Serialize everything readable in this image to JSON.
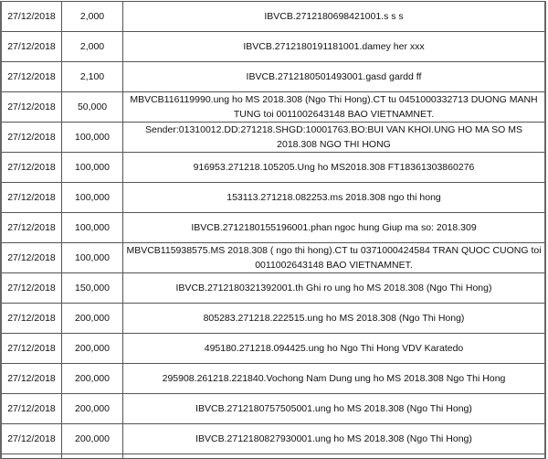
{
  "rows": [
    {
      "date": "27/12/2018",
      "amount": "2,000",
      "description": "IBVCB.2712180698421001.s s s"
    },
    {
      "date": "27/12/2018",
      "amount": "2,000",
      "description": "IBVCB.2712180191181001.damey her xxx"
    },
    {
      "date": "27/12/2018",
      "amount": "2,100",
      "description": "IBVCB.2712180501493001.gasd gardd ff"
    },
    {
      "date": "27/12/2018",
      "amount": "50,000",
      "description": "MBVCB116119990.ung ho MS 2018.308 (Ngo Thi Hong).CT tu 0451000332713 DUONG MANH TUNG toi 0011002643148 BAO VIETNAMNET."
    },
    {
      "date": "27/12/2018",
      "amount": "100,000",
      "description": "Sender:01310012.DD:271218.SHGD:10001763.BO:BUI VAN KHOI.UNG HO MA SO MS 2018.308 NGO THI HONG"
    },
    {
      "date": "27/12/2018",
      "amount": "100,000",
      "description": "916953.271218.105205.Ung ho MS2018.308 FT18361303860276"
    },
    {
      "date": "27/12/2018",
      "amount": "100,000",
      "description": "153113.271218.082253.ms 2018.308 ngo thi hong"
    },
    {
      "date": "27/12/2018",
      "amount": "100,000",
      "description": "IBVCB.2712180155196001.phan ngoc hung Giup ma so: 2018.309"
    },
    {
      "date": "27/12/2018",
      "amount": "100,000",
      "description": "MBVCB115938575.MS 2018.308 ( ngo thi hong).CT tu 0371000424584 TRAN QUOC CUONG toi 0011002643148 BAO VIETNAMNET."
    },
    {
      "date": "27/12/2018",
      "amount": "150,000",
      "description": "IBVCB.2712180321392001.th Ghi ro ung ho MS 2018.308 (Ngo Thi Hong)"
    },
    {
      "date": "27/12/2018",
      "amount": "200,000",
      "description": "805283.271218.222515.ung ho MS 2018.308 (Ngo Thi Hong)"
    },
    {
      "date": "27/12/2018",
      "amount": "200,000",
      "description": "495180.271218.094425.ung ho Ngo Thi Hong VDV Karatedo"
    },
    {
      "date": "27/12/2018",
      "amount": "200,000",
      "description": "295908.261218.221840.Vochong Nam Dung ung ho MS 2018.308 Ngo Thi Hong"
    },
    {
      "date": "27/12/2018",
      "amount": "200,000",
      "description": "IBVCB.2712180757505001.ung ho MS 2018.308 (Ngo Thi Hong)"
    },
    {
      "date": "27/12/2018",
      "amount": "200,000",
      "description": "IBVCB.2712180827930001.ung ho MS 2018.308 (Ngo Thi Hong)"
    }
  ]
}
